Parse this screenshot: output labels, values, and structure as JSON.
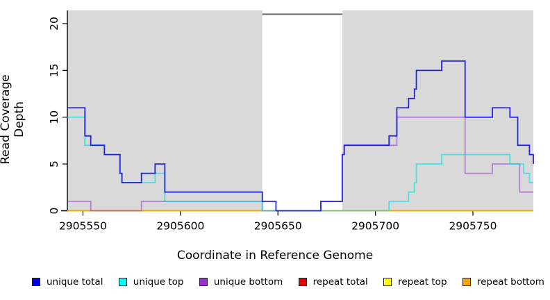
{
  "chart_data": {
    "type": "line",
    "subtype": "step-coverage",
    "title": "",
    "xlabel": "Coordinate in Reference Genome",
    "ylabel": "Read Coverage Depth",
    "xlim": [
      2905542,
      2905781
    ],
    "ylim": [
      0,
      21
    ],
    "grid": "off",
    "x_ticks": [
      2905550,
      2905600,
      2905650,
      2905700,
      2905750
    ],
    "y_ticks": [
      0,
      5,
      10,
      15,
      20
    ],
    "shade_color": "#d9d9d9",
    "gap_border_color": "#666666",
    "shaded_regions": [
      {
        "x0": 2905542,
        "x1": 2905642
      },
      {
        "x0": 2905683,
        "x1": 2905781
      }
    ],
    "series": [
      {
        "name": "repeat total",
        "color": "#e60000",
        "opacity": 1.0,
        "steps": [
          [
            2905542,
            0
          ]
        ]
      },
      {
        "name": "repeat top",
        "color": "#ffff00",
        "opacity": 1.0,
        "steps": [
          [
            2905542,
            0
          ]
        ]
      },
      {
        "name": "repeat bottom",
        "color": "#ff9d00",
        "opacity": 1.0,
        "steps": [
          [
            2905542,
            0
          ]
        ]
      },
      {
        "name": "unique bottom",
        "color": "#9932cc",
        "opacity": 0.55,
        "steps": [
          [
            2905542,
            1
          ],
          [
            2905554,
            0
          ],
          [
            2905580,
            1
          ],
          [
            2905642,
            0
          ],
          [
            2905672,
            1
          ],
          [
            2905683,
            6
          ],
          [
            2905684,
            7
          ],
          [
            2905711,
            10
          ],
          [
            2905746,
            4
          ],
          [
            2905760,
            5
          ],
          [
            2905774,
            2
          ]
        ]
      },
      {
        "name": "unique top",
        "color": "#00e0e8",
        "opacity": 0.65,
        "steps": [
          [
            2905542,
            10
          ],
          [
            2905551,
            7
          ],
          [
            2905561,
            6
          ],
          [
            2905569,
            4
          ],
          [
            2905570,
            3
          ],
          [
            2905587,
            4
          ],
          [
            2905592,
            1
          ],
          [
            2905642,
            0
          ],
          [
            2905707,
            1
          ],
          [
            2905717,
            2
          ],
          [
            2905720,
            3
          ],
          [
            2905721,
            5
          ],
          [
            2905734,
            6
          ],
          [
            2905769,
            5
          ],
          [
            2905776,
            4
          ],
          [
            2905779,
            3
          ]
        ]
      },
      {
        "name": "unique total",
        "color": "#1a1ae0",
        "opacity": 0.95,
        "steps": [
          [
            2905542,
            11
          ],
          [
            2905551,
            8
          ],
          [
            2905554,
            7
          ],
          [
            2905561,
            6
          ],
          [
            2905569,
            4
          ],
          [
            2905570,
            3
          ],
          [
            2905580,
            4
          ],
          [
            2905587,
            5
          ],
          [
            2905592,
            2
          ],
          [
            2905642,
            1
          ],
          [
            2905649,
            0
          ],
          [
            2905672,
            1
          ],
          [
            2905683,
            6
          ],
          [
            2905684,
            7
          ],
          [
            2905707,
            8
          ],
          [
            2905711,
            11
          ],
          [
            2905717,
            12
          ],
          [
            2905720,
            13
          ],
          [
            2905721,
            15
          ],
          [
            2905734,
            16
          ],
          [
            2905746,
            10
          ],
          [
            2905760,
            11
          ],
          [
            2905769,
            10
          ],
          [
            2905773,
            7
          ],
          [
            2905779,
            6
          ],
          [
            2905781,
            5
          ]
        ]
      }
    ],
    "legend": [
      {
        "label": "unique total",
        "color": "#0000ee"
      },
      {
        "label": "unique top",
        "color": "#00ffff"
      },
      {
        "label": "unique bottom",
        "color": "#9932cc"
      },
      {
        "label": "repeat total",
        "color": "#e60000"
      },
      {
        "label": "repeat top",
        "color": "#ffff00"
      },
      {
        "label": "repeat bottom",
        "color": "#ffa500"
      }
    ],
    "legend_position": "bottom"
  }
}
